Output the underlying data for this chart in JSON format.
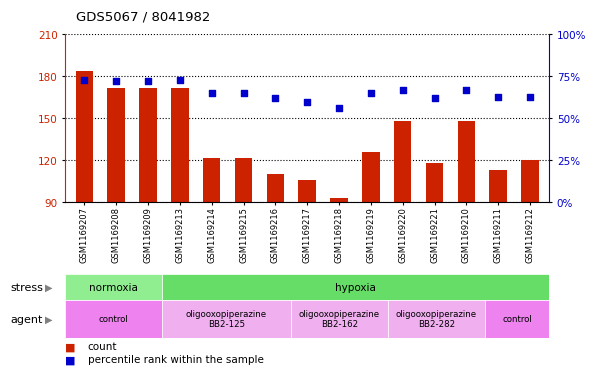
{
  "title": "GDS5067 / 8041982",
  "samples": [
    "GSM1169207",
    "GSM1169208",
    "GSM1169209",
    "GSM1169213",
    "GSM1169214",
    "GSM1169215",
    "GSM1169216",
    "GSM1169217",
    "GSM1169218",
    "GSM1169219",
    "GSM1169220",
    "GSM1169221",
    "GSM1169210",
    "GSM1169211",
    "GSM1169212"
  ],
  "counts": [
    184,
    172,
    172,
    172,
    122,
    122,
    110,
    106,
    93,
    126,
    148,
    118,
    148,
    113,
    120
  ],
  "percentiles": [
    73,
    72,
    72,
    73,
    65,
    65,
    62,
    60,
    56,
    65,
    67,
    62,
    67,
    63,
    63
  ],
  "ylim_left": [
    90,
    210
  ],
  "ylim_right": [
    0,
    100
  ],
  "yticks_left": [
    90,
    120,
    150,
    180,
    210
  ],
  "yticks_right": [
    0,
    25,
    50,
    75,
    100
  ],
  "bar_color": "#cc2200",
  "dot_color": "#0000cc",
  "bg_color": "#ffffff",
  "plot_bg": "#ffffff",
  "stress_row": [
    {
      "label": "normoxia",
      "start": 0,
      "end": 3,
      "color": "#90ee90"
    },
    {
      "label": "hypoxia",
      "start": 3,
      "end": 15,
      "color": "#66dd66"
    }
  ],
  "agent_row": [
    {
      "label": "control",
      "start": 0,
      "end": 3,
      "color": "#ee82ee"
    },
    {
      "label": "oligooxopiperazine\nBB2-125",
      "start": 3,
      "end": 7,
      "color": "#f0b0f0"
    },
    {
      "label": "oligooxopiperazine\nBB2-162",
      "start": 7,
      "end": 10,
      "color": "#f0b0f0"
    },
    {
      "label": "oligooxopiperazine\nBB2-282",
      "start": 10,
      "end": 13,
      "color": "#f0b0f0"
    },
    {
      "label": "control",
      "start": 13,
      "end": 15,
      "color": "#ee82ee"
    }
  ],
  "legend_count_color": "#cc2200",
  "legend_dot_color": "#0000cc",
  "stress_label": "stress",
  "agent_label": "agent"
}
